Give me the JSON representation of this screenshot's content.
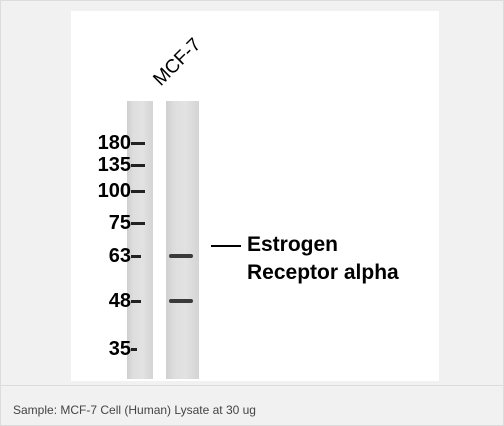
{
  "figure": {
    "lane_label": "MCF-7",
    "markers": [
      {
        "label": "180",
        "mw": 180
      },
      {
        "label": "135",
        "mw": 135
      },
      {
        "label": "100",
        "mw": 100
      },
      {
        "label": "75",
        "mw": 75
      },
      {
        "label": "63",
        "mw": 63
      },
      {
        "label": "48",
        "mw": 48
      },
      {
        "label": "35",
        "mw": 35
      }
    ],
    "target_label": "Estrogen Receptor alpha",
    "bands": [
      {
        "lane": "sample",
        "mw": 63,
        "intensity": "medium"
      },
      {
        "lane": "sample",
        "mw": 48,
        "intensity": "medium"
      }
    ]
  },
  "caption": {
    "text": "Sample: MCF-7 Cell (Human) Lysate at 30 ug"
  }
}
